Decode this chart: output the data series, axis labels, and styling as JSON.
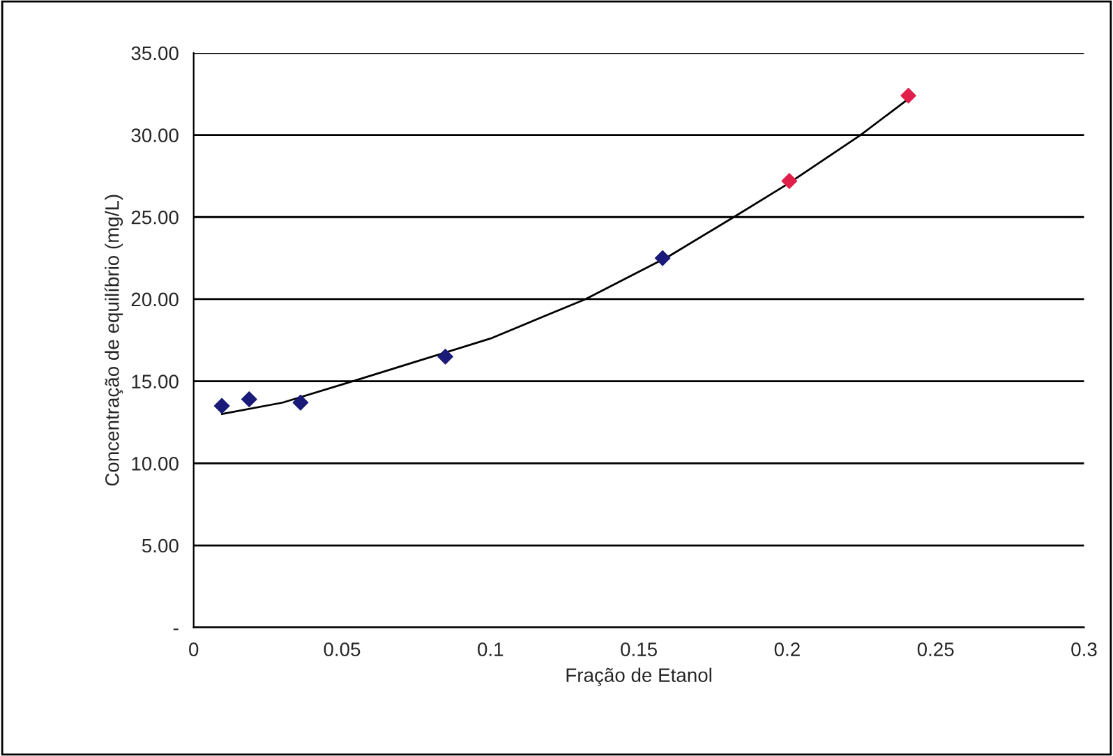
{
  "chart_data": {
    "type": "scatter",
    "xlabel": "Fração de Etanol",
    "ylabel": "Concentração de equilíbrio (mg/L)",
    "series": [
      {
        "color": "#1a1a78",
        "marker": "diamond",
        "x": [
          0.0095,
          0.0187,
          0.036,
          0.0848,
          0.158
        ],
        "values": [
          13.5,
          13.9,
          13.7,
          16.5,
          22.5
        ]
      },
      {
        "color": "#e0204a",
        "marker": "diamond",
        "x": [
          0.2007,
          0.2408
        ],
        "values": [
          27.2,
          32.4
        ]
      },
      {
        "type": "line",
        "color": "#000000",
        "x": [
          0.0095,
          0.03,
          0.0536,
          0.075,
          0.1,
          0.132,
          0.16,
          0.182,
          0.2,
          0.2247,
          0.2408
        ],
        "values": [
          13.0,
          13.7,
          15.0,
          16.2,
          17.6,
          20.0,
          22.6,
          25.0,
          27.0,
          30.0,
          32.2
        ]
      }
    ],
    "grid": "y",
    "xlim": [
      0,
      0.3
    ],
    "xticks": [
      0,
      0.05,
      0.1,
      0.15,
      0.2,
      0.25,
      0.3
    ],
    "ylim": [
      0,
      35
    ],
    "yticks": [
      {
        "value": 0,
        "label": "-"
      },
      {
        "value": 5,
        "label": "5.00"
      },
      {
        "value": 10,
        "label": "10.00"
      },
      {
        "value": 15,
        "label": "15.00"
      },
      {
        "value": 20,
        "label": "20.00"
      },
      {
        "value": 25,
        "label": "25.00"
      },
      {
        "value": 30,
        "label": "30.00"
      },
      {
        "value": 35,
        "label": "35.00"
      }
    ]
  }
}
